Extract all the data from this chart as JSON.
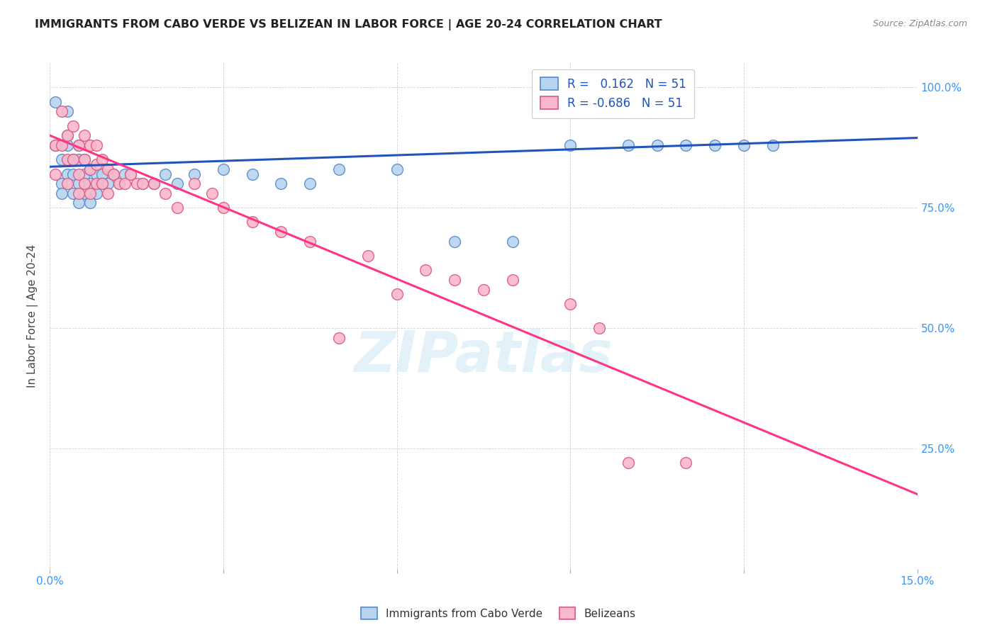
{
  "title": "IMMIGRANTS FROM CABO VERDE VS BELIZEAN IN LABOR FORCE | AGE 20-24 CORRELATION CHART",
  "source": "Source: ZipAtlas.com",
  "ylabel": "In Labor Force | Age 20-24",
  "xlim": [
    0.0,
    0.15
  ],
  "ylim": [
    0.0,
    1.05
  ],
  "cabo_verde_color": "#b8d4ee",
  "belizean_color": "#f9b8cb",
  "cabo_verde_edge": "#5588cc",
  "belizean_edge": "#e05580",
  "trend_cabo_color": "#2255bb",
  "trend_belizean_color": "#ff3388",
  "legend_R_cabo": "R =   0.162   N = 51",
  "legend_R_belize": "R = -0.686   N = 51",
  "watermark": "ZIPatlas",
  "cabo_verde_x": [
    0.001,
    0.001,
    0.002,
    0.002,
    0.002,
    0.003,
    0.003,
    0.003,
    0.003,
    0.004,
    0.004,
    0.004,
    0.005,
    0.005,
    0.005,
    0.005,
    0.006,
    0.006,
    0.006,
    0.007,
    0.007,
    0.007,
    0.008,
    0.008,
    0.009,
    0.009,
    0.01,
    0.011,
    0.012,
    0.013,
    0.014,
    0.016,
    0.018,
    0.02,
    0.022,
    0.025,
    0.03,
    0.035,
    0.04,
    0.045,
    0.05,
    0.06,
    0.07,
    0.08,
    0.09,
    0.1,
    0.105,
    0.11,
    0.115,
    0.12,
    0.125
  ],
  "cabo_verde_y": [
    0.97,
    0.88,
    0.85,
    0.8,
    0.78,
    0.95,
    0.9,
    0.88,
    0.82,
    0.85,
    0.82,
    0.78,
    0.88,
    0.85,
    0.8,
    0.76,
    0.85,
    0.82,
    0.78,
    0.83,
    0.8,
    0.76,
    0.82,
    0.78,
    0.82,
    0.8,
    0.8,
    0.82,
    0.8,
    0.82,
    0.82,
    0.8,
    0.8,
    0.82,
    0.8,
    0.82,
    0.83,
    0.82,
    0.8,
    0.8,
    0.83,
    0.83,
    0.68,
    0.68,
    0.88,
    0.88,
    0.88,
    0.88,
    0.88,
    0.88,
    0.88
  ],
  "belizean_x": [
    0.001,
    0.001,
    0.002,
    0.002,
    0.003,
    0.003,
    0.003,
    0.004,
    0.004,
    0.005,
    0.005,
    0.005,
    0.006,
    0.006,
    0.006,
    0.007,
    0.007,
    0.007,
    0.008,
    0.008,
    0.008,
    0.009,
    0.009,
    0.01,
    0.01,
    0.011,
    0.012,
    0.013,
    0.014,
    0.015,
    0.016,
    0.018,
    0.02,
    0.022,
    0.025,
    0.028,
    0.03,
    0.035,
    0.04,
    0.045,
    0.05,
    0.055,
    0.06,
    0.065,
    0.07,
    0.075,
    0.08,
    0.09,
    0.095,
    0.1,
    0.11
  ],
  "belizean_y": [
    0.88,
    0.82,
    0.95,
    0.88,
    0.9,
    0.85,
    0.8,
    0.92,
    0.85,
    0.88,
    0.82,
    0.78,
    0.9,
    0.85,
    0.8,
    0.88,
    0.83,
    0.78,
    0.88,
    0.84,
    0.8,
    0.85,
    0.8,
    0.83,
    0.78,
    0.82,
    0.8,
    0.8,
    0.82,
    0.8,
    0.8,
    0.8,
    0.78,
    0.75,
    0.8,
    0.78,
    0.75,
    0.72,
    0.7,
    0.68,
    0.48,
    0.65,
    0.57,
    0.62,
    0.6,
    0.58,
    0.6,
    0.55,
    0.5,
    0.22,
    0.22
  ],
  "trend_cabo_x0": 0.0,
  "trend_cabo_x1": 0.15,
  "trend_cabo_y0": 0.835,
  "trend_cabo_y1": 0.895,
  "trend_belize_x0": 0.0,
  "trend_belize_x1": 0.15,
  "trend_belize_y0": 0.9,
  "trend_belize_y1": 0.155
}
